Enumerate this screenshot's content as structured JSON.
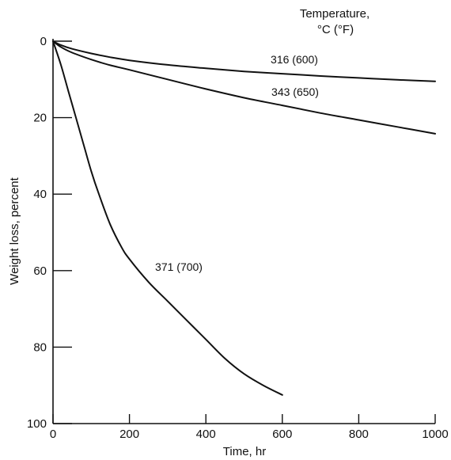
{
  "chart_data": {
    "type": "line",
    "title": "",
    "xlabel": "Time, hr",
    "ylabel": "Weight loss, percent",
    "xlim": [
      0,
      1000
    ],
    "ylim": [
      0,
      100
    ],
    "y_inverted": true,
    "grid": false,
    "x_ticks": [
      "0",
      "200",
      "400",
      "600",
      "800",
      "1000"
    ],
    "y_ticks": [
      "0",
      "20",
      "40",
      "60",
      "80",
      "100"
    ],
    "legend_title_line1": "Temperature,",
    "legend_title_line2": "°C (°F)",
    "series": [
      {
        "name": "316 (600)",
        "x": [
          0,
          20,
          50,
          100,
          150,
          200,
          300,
          400,
          500,
          600,
          700,
          800,
          900,
          1000
        ],
        "y": [
          0,
          1.0,
          2.0,
          3.2,
          4.2,
          5.0,
          6.2,
          7.1,
          7.9,
          8.5,
          9.1,
          9.6,
          10.1,
          10.5
        ]
      },
      {
        "name": "343 (650)",
        "x": [
          0,
          20,
          50,
          100,
          150,
          200,
          300,
          400,
          500,
          600,
          700,
          800,
          900,
          1000
        ],
        "y": [
          0,
          1.5,
          3.0,
          4.8,
          6.3,
          7.5,
          10.0,
          12.5,
          14.8,
          16.8,
          18.8,
          20.6,
          22.4,
          24.2
        ]
      },
      {
        "name": "371 (700)",
        "x": [
          0,
          20,
          40,
          60,
          80,
          100,
          120,
          150,
          180,
          200,
          250,
          300,
          350,
          400,
          450,
          500,
          550,
          600
        ],
        "y": [
          0,
          6,
          13,
          20,
          27,
          34,
          40,
          48,
          54,
          57,
          63,
          68,
          73,
          78,
          83,
          87,
          90,
          92.5
        ]
      }
    ]
  }
}
